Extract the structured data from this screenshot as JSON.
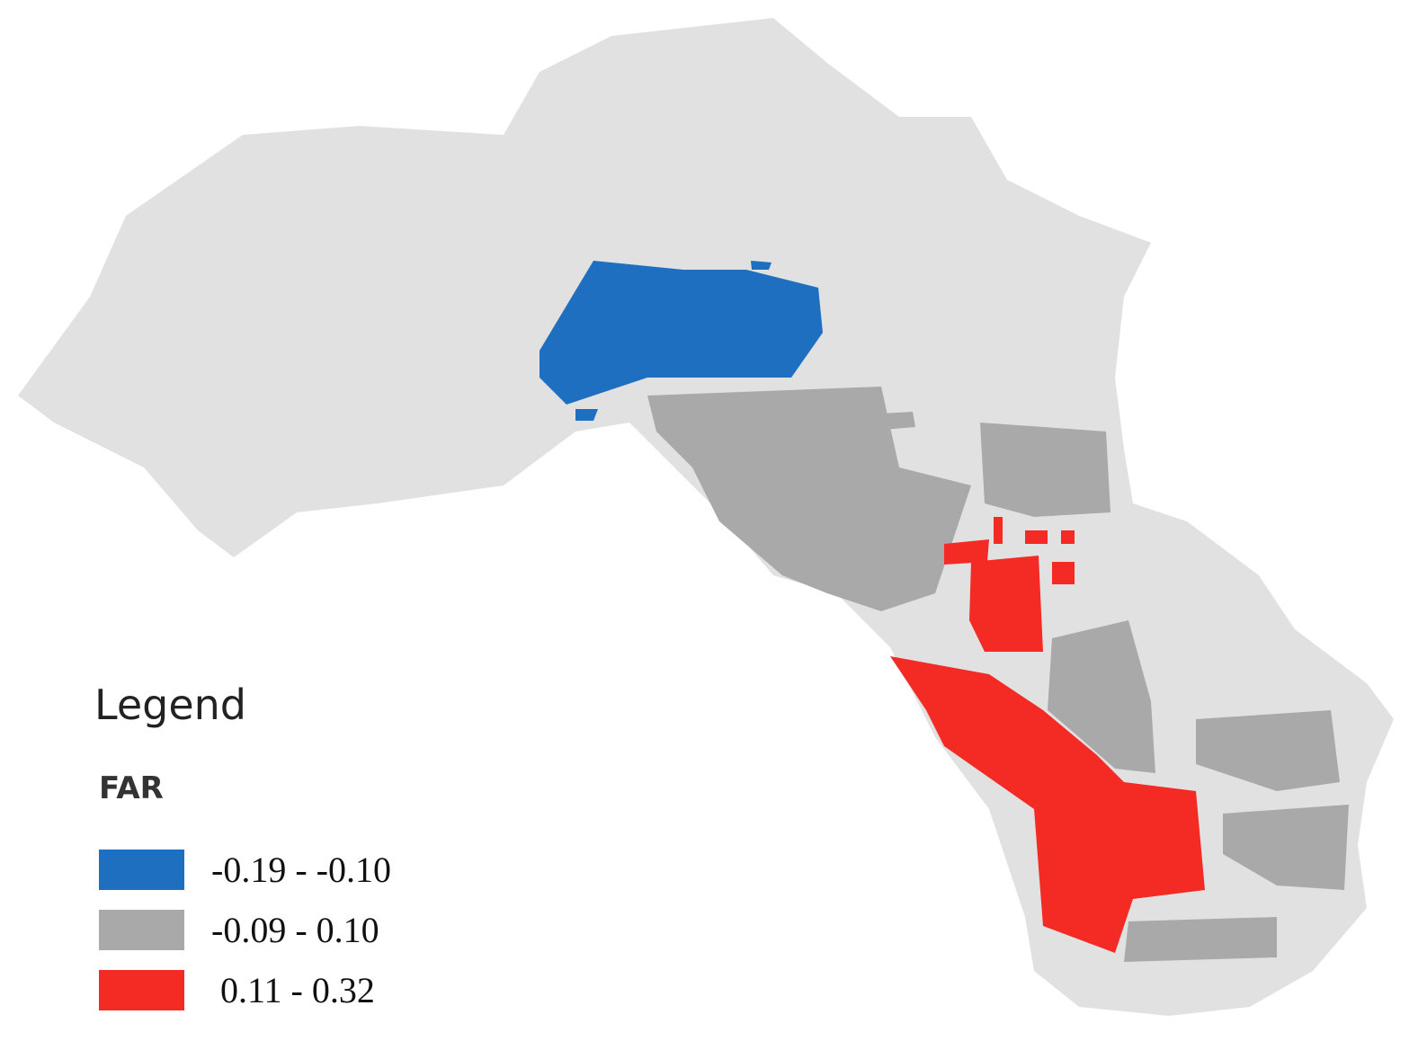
{
  "legend": {
    "title": "Legend",
    "field": "FAR",
    "items": [
      {
        "label": "-0.19 - -0.10",
        "color": "#1f6fc1"
      },
      {
        "label": "-0.09 - 0.10",
        "color": "#a9a9a9"
      },
      {
        "label": " 0.11 - 0.32",
        "color": "#f42b24"
      }
    ]
  }
}
